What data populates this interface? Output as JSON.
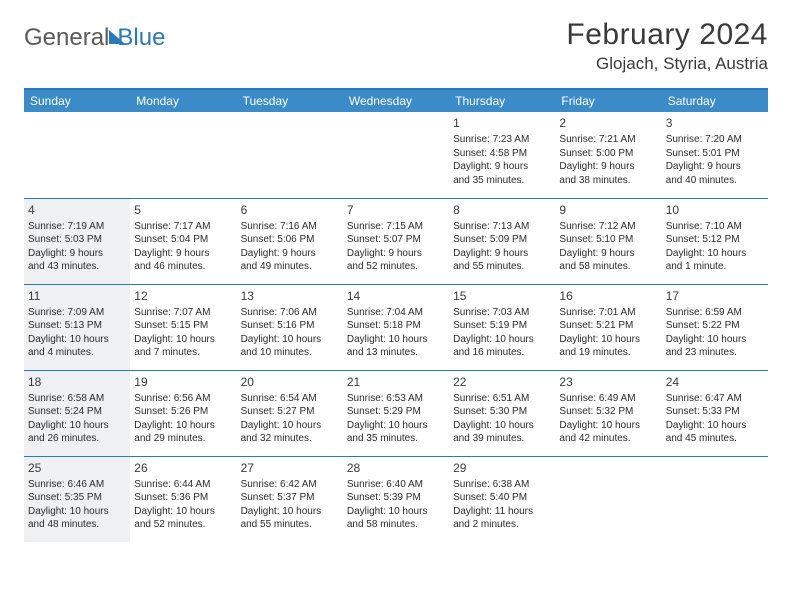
{
  "brand": {
    "word1": "General",
    "word2": "Blue"
  },
  "header": {
    "title": "February 2024",
    "location": "Glojach, Styria, Austria"
  },
  "colors": {
    "accent": "#3b8bc9",
    "rule": "#2a7ab9",
    "shade": "#eef0f2",
    "text": "#2b2b2b"
  },
  "dayNames": [
    "Sunday",
    "Monday",
    "Tuesday",
    "Wednesday",
    "Thursday",
    "Friday",
    "Saturday"
  ],
  "weeks": [
    [
      null,
      null,
      null,
      null,
      {
        "n": "1",
        "sr": "Sunrise: 7:23 AM",
        "ss": "Sunset: 4:58 PM",
        "dl1": "Daylight: 9 hours",
        "dl2": "and 35 minutes.",
        "shade": false
      },
      {
        "n": "2",
        "sr": "Sunrise: 7:21 AM",
        "ss": "Sunset: 5:00 PM",
        "dl1": "Daylight: 9 hours",
        "dl2": "and 38 minutes.",
        "shade": false
      },
      {
        "n": "3",
        "sr": "Sunrise: 7:20 AM",
        "ss": "Sunset: 5:01 PM",
        "dl1": "Daylight: 9 hours",
        "dl2": "and 40 minutes.",
        "shade": false
      }
    ],
    [
      {
        "n": "4",
        "sr": "Sunrise: 7:19 AM",
        "ss": "Sunset: 5:03 PM",
        "dl1": "Daylight: 9 hours",
        "dl2": "and 43 minutes.",
        "shade": true
      },
      {
        "n": "5",
        "sr": "Sunrise: 7:17 AM",
        "ss": "Sunset: 5:04 PM",
        "dl1": "Daylight: 9 hours",
        "dl2": "and 46 minutes.",
        "shade": false
      },
      {
        "n": "6",
        "sr": "Sunrise: 7:16 AM",
        "ss": "Sunset: 5:06 PM",
        "dl1": "Daylight: 9 hours",
        "dl2": "and 49 minutes.",
        "shade": false
      },
      {
        "n": "7",
        "sr": "Sunrise: 7:15 AM",
        "ss": "Sunset: 5:07 PM",
        "dl1": "Daylight: 9 hours",
        "dl2": "and 52 minutes.",
        "shade": false
      },
      {
        "n": "8",
        "sr": "Sunrise: 7:13 AM",
        "ss": "Sunset: 5:09 PM",
        "dl1": "Daylight: 9 hours",
        "dl2": "and 55 minutes.",
        "shade": false
      },
      {
        "n": "9",
        "sr": "Sunrise: 7:12 AM",
        "ss": "Sunset: 5:10 PM",
        "dl1": "Daylight: 9 hours",
        "dl2": "and 58 minutes.",
        "shade": false
      },
      {
        "n": "10",
        "sr": "Sunrise: 7:10 AM",
        "ss": "Sunset: 5:12 PM",
        "dl1": "Daylight: 10 hours",
        "dl2": "and 1 minute.",
        "shade": false
      }
    ],
    [
      {
        "n": "11",
        "sr": "Sunrise: 7:09 AM",
        "ss": "Sunset: 5:13 PM",
        "dl1": "Daylight: 10 hours",
        "dl2": "and 4 minutes.",
        "shade": true
      },
      {
        "n": "12",
        "sr": "Sunrise: 7:07 AM",
        "ss": "Sunset: 5:15 PM",
        "dl1": "Daylight: 10 hours",
        "dl2": "and 7 minutes.",
        "shade": false
      },
      {
        "n": "13",
        "sr": "Sunrise: 7:06 AM",
        "ss": "Sunset: 5:16 PM",
        "dl1": "Daylight: 10 hours",
        "dl2": "and 10 minutes.",
        "shade": false
      },
      {
        "n": "14",
        "sr": "Sunrise: 7:04 AM",
        "ss": "Sunset: 5:18 PM",
        "dl1": "Daylight: 10 hours",
        "dl2": "and 13 minutes.",
        "shade": false
      },
      {
        "n": "15",
        "sr": "Sunrise: 7:03 AM",
        "ss": "Sunset: 5:19 PM",
        "dl1": "Daylight: 10 hours",
        "dl2": "and 16 minutes.",
        "shade": false
      },
      {
        "n": "16",
        "sr": "Sunrise: 7:01 AM",
        "ss": "Sunset: 5:21 PM",
        "dl1": "Daylight: 10 hours",
        "dl2": "and 19 minutes.",
        "shade": false
      },
      {
        "n": "17",
        "sr": "Sunrise: 6:59 AM",
        "ss": "Sunset: 5:22 PM",
        "dl1": "Daylight: 10 hours",
        "dl2": "and 23 minutes.",
        "shade": false
      }
    ],
    [
      {
        "n": "18",
        "sr": "Sunrise: 6:58 AM",
        "ss": "Sunset: 5:24 PM",
        "dl1": "Daylight: 10 hours",
        "dl2": "and 26 minutes.",
        "shade": true
      },
      {
        "n": "19",
        "sr": "Sunrise: 6:56 AM",
        "ss": "Sunset: 5:26 PM",
        "dl1": "Daylight: 10 hours",
        "dl2": "and 29 minutes.",
        "shade": false
      },
      {
        "n": "20",
        "sr": "Sunrise: 6:54 AM",
        "ss": "Sunset: 5:27 PM",
        "dl1": "Daylight: 10 hours",
        "dl2": "and 32 minutes.",
        "shade": false
      },
      {
        "n": "21",
        "sr": "Sunrise: 6:53 AM",
        "ss": "Sunset: 5:29 PM",
        "dl1": "Daylight: 10 hours",
        "dl2": "and 35 minutes.",
        "shade": false
      },
      {
        "n": "22",
        "sr": "Sunrise: 6:51 AM",
        "ss": "Sunset: 5:30 PM",
        "dl1": "Daylight: 10 hours",
        "dl2": "and 39 minutes.",
        "shade": false
      },
      {
        "n": "23",
        "sr": "Sunrise: 6:49 AM",
        "ss": "Sunset: 5:32 PM",
        "dl1": "Daylight: 10 hours",
        "dl2": "and 42 minutes.",
        "shade": false
      },
      {
        "n": "24",
        "sr": "Sunrise: 6:47 AM",
        "ss": "Sunset: 5:33 PM",
        "dl1": "Daylight: 10 hours",
        "dl2": "and 45 minutes.",
        "shade": false
      }
    ],
    [
      {
        "n": "25",
        "sr": "Sunrise: 6:46 AM",
        "ss": "Sunset: 5:35 PM",
        "dl1": "Daylight: 10 hours",
        "dl2": "and 48 minutes.",
        "shade": true
      },
      {
        "n": "26",
        "sr": "Sunrise: 6:44 AM",
        "ss": "Sunset: 5:36 PM",
        "dl1": "Daylight: 10 hours",
        "dl2": "and 52 minutes.",
        "shade": false
      },
      {
        "n": "27",
        "sr": "Sunrise: 6:42 AM",
        "ss": "Sunset: 5:37 PM",
        "dl1": "Daylight: 10 hours",
        "dl2": "and 55 minutes.",
        "shade": false
      },
      {
        "n": "28",
        "sr": "Sunrise: 6:40 AM",
        "ss": "Sunset: 5:39 PM",
        "dl1": "Daylight: 10 hours",
        "dl2": "and 58 minutes.",
        "shade": false
      },
      {
        "n": "29",
        "sr": "Sunrise: 6:38 AM",
        "ss": "Sunset: 5:40 PM",
        "dl1": "Daylight: 11 hours",
        "dl2": "and 2 minutes.",
        "shade": false
      },
      null,
      null
    ]
  ]
}
